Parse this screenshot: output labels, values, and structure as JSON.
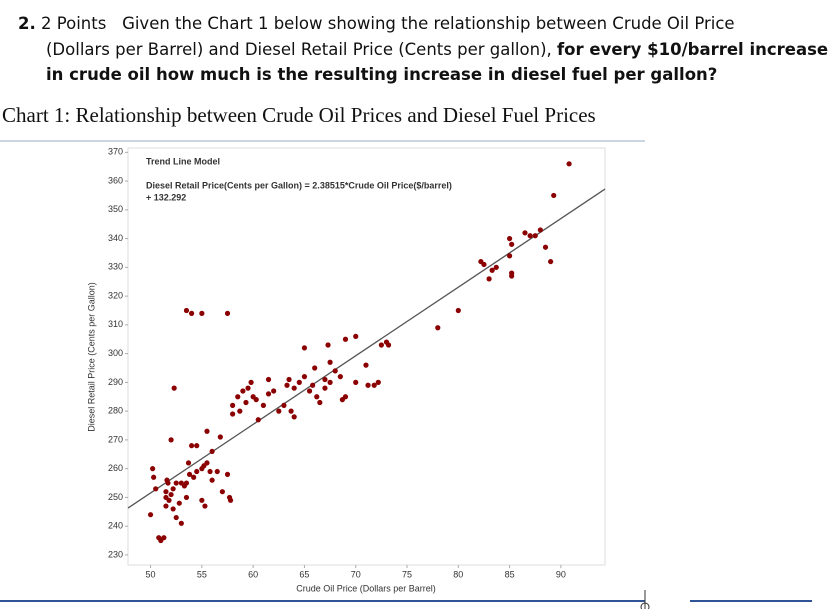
{
  "question": {
    "number": "2.",
    "points": "2 Points",
    "line1": "Given the Chart 1 below showing the relationship between Crude Oil Price",
    "line2": "(Dollars per Barrel) and Diesel Retail Price (Cents per gallon),",
    "line2_bold": "for every $10/barrel increase",
    "line3_bold": "in crude oil how much is the resulting increase in diesel fuel per gallon?"
  },
  "chart_caption": "Chart 1: Relationship between Crude Oil Prices and Diesel Fuel Prices",
  "chart_data": {
    "type": "scatter",
    "x_label": "Crude Oil Price (Dollars per Barrel)",
    "y_label": "Diesel Retail Price (Cents per Gallon)",
    "annotation_title": "Trend Line Model",
    "annotation_line1": "Diesel Retail Price(Cents per Gallon) = 2.38515*Crude Oil Price($/barrel)",
    "annotation_line2": "+ 132.292",
    "trend_line": {
      "slope": 2.38515,
      "intercept": 132.292,
      "color": "#555555"
    },
    "color": "#8b0000",
    "xlim": [
      47.8,
      94.3
    ],
    "ylim": [
      226.5,
      371.5
    ],
    "xticks": [
      50,
      55,
      60,
      65,
      70,
      75,
      80,
      85,
      90
    ],
    "yticks": [
      230,
      240,
      250,
      260,
      270,
      280,
      290,
      300,
      310,
      320,
      330,
      340,
      350,
      360,
      370
    ],
    "x": [
      50.2,
      50.3,
      50.5,
      50,
      50.8,
      51,
      51.3,
      51.5,
      51.5,
      51.5,
      51.7,
      51.6,
      51.8,
      52,
      52.2,
      52,
      52.3,
      52.5,
      52.2,
      52.5,
      53,
      52.8,
      53,
      53.3,
      53.5,
      53.5,
      53.7,
      53.8,
      54,
      54.2,
      54.5,
      54.5,
      55,
      55.2,
      55.5,
      55.8,
      55.5,
      55.3,
      55,
      56,
      56,
      56.5,
      56.8,
      57,
      57.5,
      57.7,
      57.8,
      58,
      58,
      58.5,
      58.7,
      59,
      59.3,
      59.5,
      59.8,
      60,
      60.3,
      60.5,
      61,
      61.5,
      61.5,
      62,
      62.5,
      63,
      63.3,
      63.5,
      63.7,
      64,
      64,
      64.5,
      65,
      65,
      65.5,
      65.8,
      66,
      66.2,
      66.5,
      67,
      67,
      67.3,
      67.5,
      67.5,
      68,
      68.5,
      68.7,
      69,
      69,
      70,
      70,
      71,
      71.2,
      71.8,
      72.2,
      72.5,
      73,
      73.2,
      78,
      80,
      82.2,
      82.5,
      83,
      83.3,
      83.7,
      85,
      85.2,
      85,
      85.2,
      85.2,
      86.5,
      87,
      87.5,
      88,
      88.5,
      89,
      89.3,
      90.8,
      53.5,
      54,
      55,
      57.5
    ],
    "y": [
      260,
      257,
      253,
      244,
      236,
      235,
      236,
      247,
      250,
      252,
      255,
      256,
      249,
      251,
      253,
      270,
      288,
      255,
      246,
      243,
      241,
      248,
      255,
      254,
      255,
      250,
      262,
      258,
      268,
      257,
      259,
      268,
      260,
      261,
      262,
      259,
      273,
      247,
      249,
      266,
      256,
      259,
      271,
      252,
      258,
      250,
      249,
      282,
      279,
      285,
      280,
      287,
      283,
      288,
      290,
      285,
      284,
      277,
      282,
      286,
      291,
      287,
      280,
      282,
      289,
      291,
      280,
      278,
      288,
      290,
      292,
      302,
      287,
      289,
      295,
      285,
      283,
      288,
      291,
      303,
      297,
      290,
      294,
      292,
      284,
      305,
      285,
      306,
      290,
      296,
      289,
      289,
      290,
      303,
      304,
      303,
      309,
      315,
      332,
      331,
      326,
      329,
      330,
      340,
      338,
      334,
      328,
      327,
      342,
      341,
      341,
      343,
      337,
      332,
      355,
      366,
      315,
      314,
      314,
      314
    ]
  }
}
